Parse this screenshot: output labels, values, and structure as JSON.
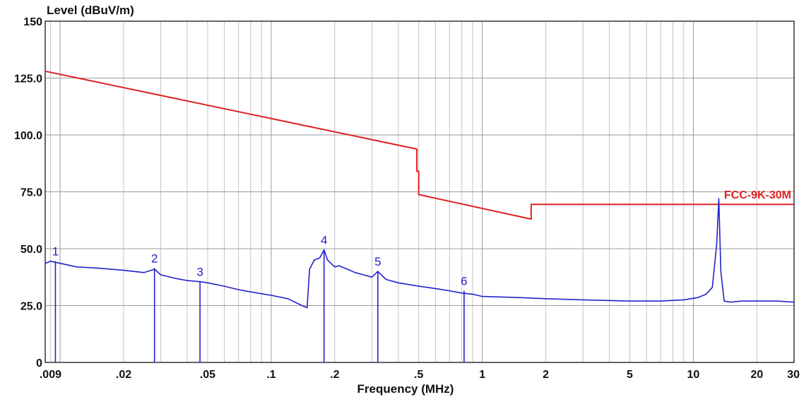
{
  "chart_data": {
    "type": "line",
    "title": "",
    "ylabel": "Level (dBuV/m)",
    "xlabel": "Frequency (MHz)",
    "xscale": "log",
    "xlim": [
      0.0085,
      30
    ],
    "ylim": [
      0,
      150
    ],
    "grid": true,
    "y_ticks": [
      {
        "value": 0,
        "label": "0"
      },
      {
        "value": 25,
        "label": "25.0"
      },
      {
        "value": 50,
        "label": "50.0"
      },
      {
        "value": 75,
        "label": "75.0"
      },
      {
        "value": 100,
        "label": "100.0"
      },
      {
        "value": 125,
        "label": "125.0"
      },
      {
        "value": 150,
        "label": "150"
      }
    ],
    "x_ticks": [
      {
        "value": 0.009,
        "label": ".009"
      },
      {
        "value": 0.02,
        "label": ".02"
      },
      {
        "value": 0.05,
        "label": ".05"
      },
      {
        "value": 0.1,
        "label": ".1"
      },
      {
        "value": 0.2,
        "label": ".2"
      },
      {
        "value": 0.5,
        "label": ".5"
      },
      {
        "value": 1,
        "label": "1"
      },
      {
        "value": 2,
        "label": "2"
      },
      {
        "value": 5,
        "label": "5"
      },
      {
        "value": 10,
        "label": "10"
      },
      {
        "value": 20,
        "label": "20"
      },
      {
        "value": 30,
        "label": "30"
      }
    ],
    "series": [
      {
        "name": "FCC-9K-30M",
        "color": "#dd2222",
        "x": [
          0.0085,
          0.49,
          0.49,
          0.5,
          0.5,
          1.705,
          1.705,
          30
        ],
        "y": [
          128.0,
          93.8,
          84.0,
          84.0,
          73.8,
          63.0,
          69.5,
          69.5
        ]
      },
      {
        "name": "",
        "color": "#2222cc",
        "x": [
          0.0085,
          0.009,
          0.012,
          0.015,
          0.02,
          0.025,
          0.028,
          0.03,
          0.035,
          0.04,
          0.046,
          0.05,
          0.06,
          0.07,
          0.08,
          0.1,
          0.12,
          0.14,
          0.148,
          0.152,
          0.16,
          0.17,
          0.178,
          0.185,
          0.2,
          0.21,
          0.25,
          0.3,
          0.32,
          0.35,
          0.4,
          0.5,
          0.6,
          0.7,
          0.8,
          0.9,
          1.0,
          1.5,
          2,
          3,
          5,
          7,
          9,
          10.5,
          11.5,
          12.3,
          12.9,
          13.2,
          13.5,
          14,
          15,
          17,
          20,
          25,
          30
        ],
        "y": [
          43.5,
          44.5,
          42.0,
          41.5,
          40.5,
          39.5,
          41.0,
          38.5,
          37.0,
          36.0,
          35.5,
          35.0,
          33.5,
          32.0,
          31.0,
          29.5,
          28.0,
          25.0,
          24.0,
          41.0,
          45.0,
          46.0,
          49.5,
          45.0,
          42.0,
          42.5,
          39.5,
          37.5,
          40.0,
          36.5,
          35.0,
          33.5,
          32.5,
          31.5,
          30.5,
          30.0,
          29.0,
          28.5,
          28.0,
          27.5,
          27.0,
          27.0,
          27.5,
          28.5,
          30.0,
          33.0,
          52.0,
          72.0,
          40.0,
          27.0,
          26.5,
          27.0,
          27.0,
          27.0,
          26.5
        ]
      }
    ],
    "markers": [
      {
        "label": "1",
        "x": 0.0095,
        "y": 44.5
      },
      {
        "label": "2",
        "x": 0.028,
        "y": 41.5
      },
      {
        "label": "3",
        "x": 0.046,
        "y": 35.5
      },
      {
        "label": "4",
        "x": 0.178,
        "y": 49.5
      },
      {
        "label": "5",
        "x": 0.32,
        "y": 40.0
      },
      {
        "label": "6",
        "x": 0.82,
        "y": 31.5
      }
    ],
    "limit_label": "FCC-9K-30M"
  }
}
